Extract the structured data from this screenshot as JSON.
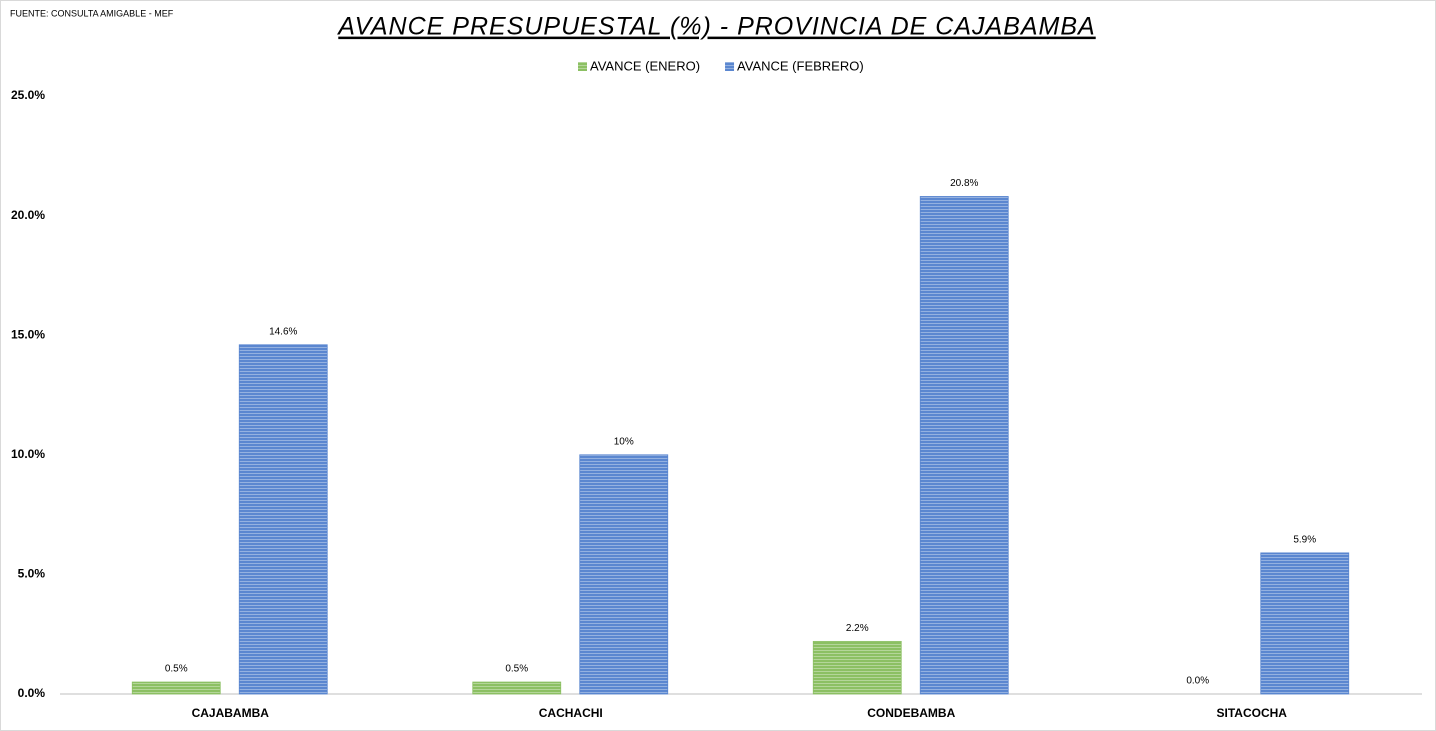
{
  "chart_data": {
    "type": "bar",
    "source": "FUENTE: CONSULTA AMIGABLE - MEF",
    "title": "AVANCE PRESUPUESTAL (%) - PROVINCIA DE CAJABAMBA",
    "categories": [
      "CAJABAMBA",
      "CACHACHI",
      "CONDEBAMBA",
      "SITACOCHA"
    ],
    "series": [
      {
        "name": "AVANCE (ENERO)",
        "color": "#8cc063",
        "values": [
          0.5,
          0.5,
          2.2,
          0.0
        ],
        "value_labels": [
          "0.5%",
          "0.5%",
          "2.2%",
          "0.0%"
        ]
      },
      {
        "name": "AVANCE (FEBRERO)",
        "color": "#5b87d0",
        "values": [
          14.6,
          10,
          20.8,
          5.9
        ],
        "value_labels": [
          "14.6%",
          "10%",
          "20.8%",
          "5.9%"
        ]
      }
    ],
    "ylim": [
      0,
      25
    ],
    "yticks": [
      {
        "value": 0,
        "label": "0.0%"
      },
      {
        "value": 5,
        "label": "5.0%"
      },
      {
        "value": 10,
        "label": "10.0%"
      },
      {
        "value": 15,
        "label": "15.0%"
      },
      {
        "value": 20,
        "label": "20.0%"
      },
      {
        "value": 25,
        "label": "25.0%"
      }
    ],
    "grid": false,
    "legend": "top"
  }
}
